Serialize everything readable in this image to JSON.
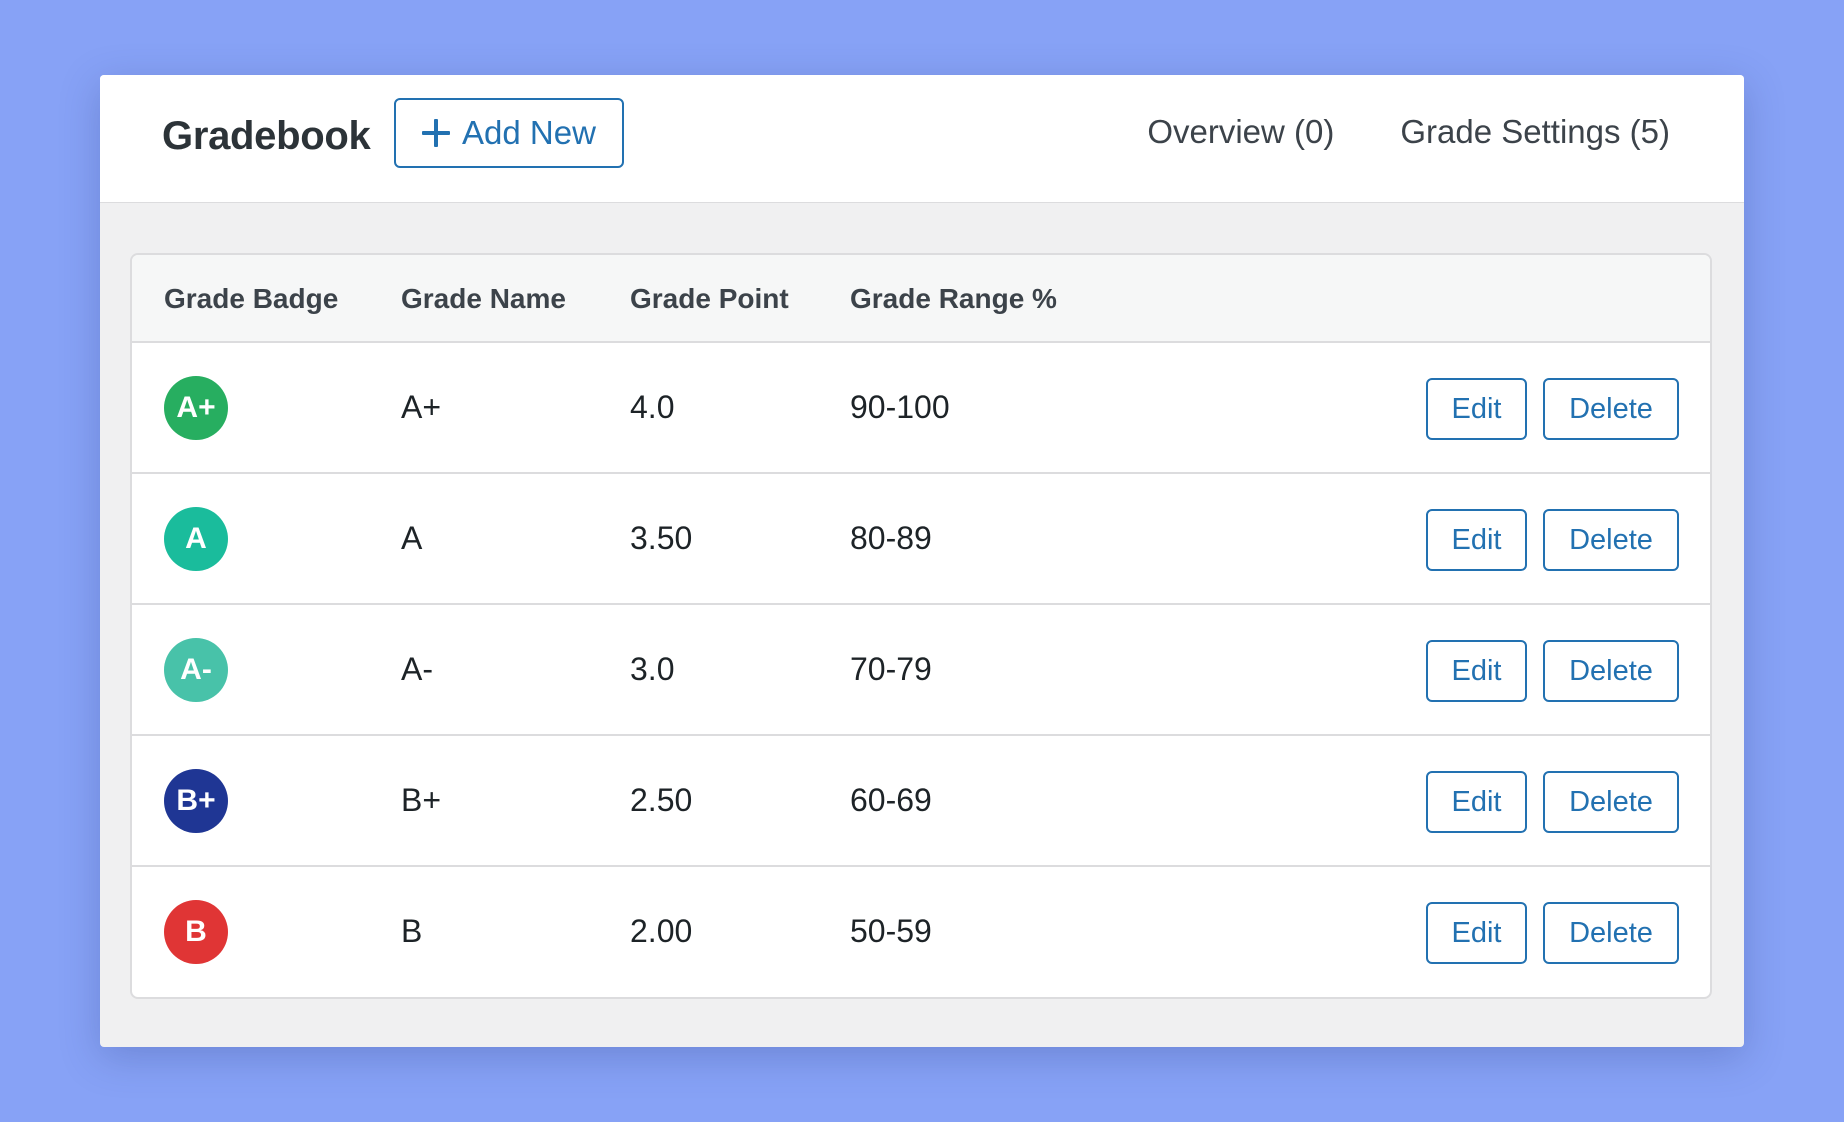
{
  "header": {
    "title": "Gradebook",
    "add_new_label": "Add New",
    "nav": [
      {
        "label": "Overview (0)"
      },
      {
        "label": "Grade Settings (5)"
      }
    ]
  },
  "table": {
    "columns": {
      "badge": "Grade Badge",
      "name": "Grade Name",
      "point": "Grade Point",
      "range": "Grade Range %"
    },
    "rows": [
      {
        "badge": "A+",
        "badge_color": "#27ae60",
        "name": "A+",
        "point": "4.0",
        "range": "90-100"
      },
      {
        "badge": "A",
        "badge_color": "#1abc9c",
        "name": "A",
        "point": "3.50",
        "range": "80-89"
      },
      {
        "badge": "A-",
        "badge_color": "#48c2a9",
        "name": "A-",
        "point": "3.0",
        "range": "70-79"
      },
      {
        "badge": "B+",
        "badge_color": "#1f3694",
        "name": "B+",
        "point": "2.50",
        "range": "60-69"
      },
      {
        "badge": "B",
        "badge_color": "#e03535",
        "name": "B",
        "point": "2.00",
        "range": "50-59"
      }
    ],
    "edit_label": "Edit",
    "delete_label": "Delete"
  },
  "colors": {
    "accent": "#2271b1",
    "background": "#87a2f6"
  }
}
